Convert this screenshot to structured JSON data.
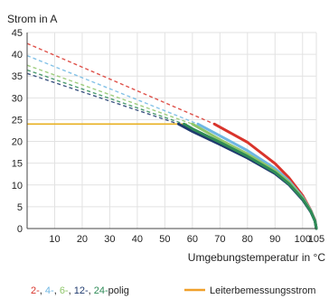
{
  "chart_data": {
    "type": "line",
    "ylabel": "Strom in A",
    "xlabel": "Umgebungstemperatur in °C",
    "xlim": [
      0,
      105
    ],
    "ylim": [
      0,
      45
    ],
    "x_ticks": [
      "10",
      "20",
      "30",
      "40",
      "50",
      "60",
      "70",
      "80",
      "90",
      "100",
      "105"
    ],
    "x_tick_values": [
      10,
      20,
      30,
      40,
      50,
      60,
      70,
      80,
      90,
      100,
      105
    ],
    "y_ticks": [
      "0",
      "5",
      "10",
      "15",
      "20",
      "25",
      "30",
      "35",
      "40",
      "45"
    ],
    "y_tick_values": [
      0,
      5,
      10,
      15,
      20,
      25,
      30,
      35,
      40,
      45
    ],
    "grid": true,
    "legend": {
      "placement": "bottom",
      "derating_parts": [
        {
          "text": "2-",
          "color": "#d9342b"
        },
        {
          "text": ", ",
          "color": "#222222"
        },
        {
          "text": "4-",
          "color": "#6fb7e3"
        },
        {
          "text": ", ",
          "color": "#222222"
        },
        {
          "text": "6-",
          "color": "#8fc66a"
        },
        {
          "text": ", ",
          "color": "#222222"
        },
        {
          "text": "12-",
          "color": "#1f3a6e"
        },
        {
          "text": ", ",
          "color": "#222222"
        },
        {
          "text": "24-",
          "color": "#2e8b57"
        },
        {
          "text": "polig",
          "color": "#222222"
        }
      ],
      "rated_label": "Leiterbemessungsstrom",
      "rated_color": "#f0a02a"
    },
    "rated_current": {
      "value": 24,
      "x": [
        0,
        58
      ],
      "color": "#e8b020"
    },
    "series": [
      {
        "color": "#d9342b",
        "dashed": {
          "x": [
            0,
            68
          ],
          "y": [
            42.5,
            24
          ]
        },
        "solid": {
          "x": [
            68,
            80,
            90,
            95,
            100,
            103,
            104.5,
            105
          ],
          "y": [
            24,
            19.8,
            14.9,
            11.7,
            7.6,
            4.2,
            1.9,
            0
          ]
        }
      },
      {
        "color": "#6fb7e3",
        "dashed": {
          "x": [
            0,
            62
          ],
          "y": [
            39.7,
            24
          ]
        },
        "solid": {
          "x": [
            62,
            70,
            80,
            90,
            95,
            100,
            103,
            104.5,
            105
          ],
          "y": [
            24,
            21.3,
            17.9,
            13.8,
            11,
            7.2,
            4.1,
            1.8,
            0
          ]
        }
      },
      {
        "color": "#8fc66a",
        "dashed": {
          "x": [
            0,
            60
          ],
          "y": [
            37.5,
            24
          ]
        },
        "solid": {
          "x": [
            60,
            70,
            80,
            90,
            95,
            100,
            103,
            104.5,
            105
          ],
          "y": [
            24,
            20.4,
            17.1,
            13.3,
            10.7,
            7,
            4,
            1.8,
            0
          ]
        }
      },
      {
        "color": "#1f3a6e",
        "dashed": {
          "x": [
            0,
            55
          ],
          "y": [
            35.6,
            24
          ]
        },
        "solid": {
          "x": [
            55,
            60,
            70,
            80,
            90,
            95,
            100,
            103,
            104.5,
            105
          ],
          "y": [
            24,
            22.3,
            19.3,
            16.2,
            12.6,
            10.1,
            6.6,
            3.8,
            1.7,
            0
          ]
        }
      },
      {
        "color": "#2e8b57",
        "dashed": {
          "x": [
            0,
            57
          ],
          "y": [
            36.4,
            24
          ]
        },
        "solid": {
          "x": [
            57,
            60,
            70,
            80,
            90,
            95,
            100,
            103,
            104.5,
            105
          ],
          "y": [
            24,
            22.9,
            19.8,
            16.6,
            12.9,
            10.3,
            6.8,
            3.9,
            1.7,
            0
          ]
        }
      }
    ]
  }
}
